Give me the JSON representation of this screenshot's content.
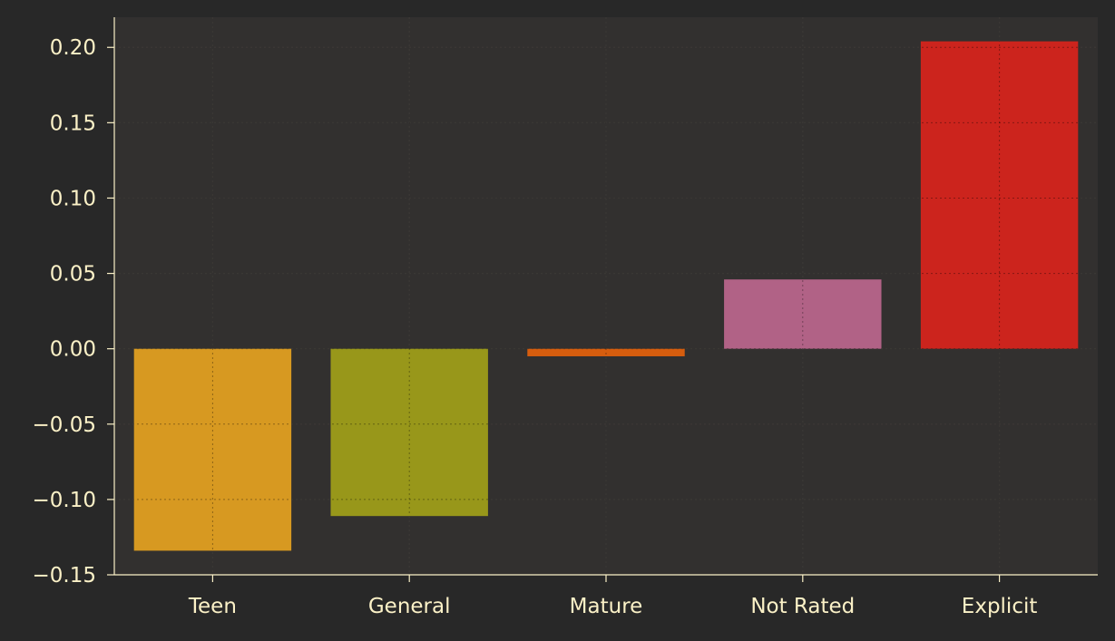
{
  "chart_data": {
    "type": "bar",
    "title": "",
    "xlabel": "",
    "ylabel": "",
    "categories": [
      "Teen",
      "General",
      "Mature",
      "Not Rated",
      "Explicit"
    ],
    "values": [
      -0.134,
      -0.111,
      -0.005,
      0.046,
      0.204
    ],
    "bar_colors": [
      "#D79921",
      "#98971A",
      "#D65D0E",
      "#B16286",
      "#CC241D"
    ],
    "ylim": [
      -0.15,
      0.22
    ],
    "yticks": [
      -0.15,
      -0.1,
      -0.05,
      0.0,
      0.05,
      0.1,
      0.15,
      0.2
    ],
    "ytick_labels": [
      "−0.15",
      "−0.10",
      "−0.05",
      "0.00",
      "0.05",
      "0.10",
      "0.15",
      "0.20"
    ],
    "grid": true,
    "legend": "none",
    "colors": {
      "figure_background": "#282828",
      "plot_background": "#32302F",
      "axis": "#FBF1C7",
      "text": "#FBF1C7",
      "grid": "#5A5550"
    }
  }
}
